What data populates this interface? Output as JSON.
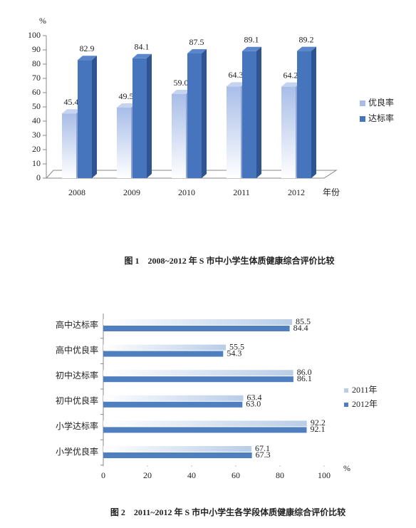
{
  "chart_data": [
    {
      "type": "bar3d",
      "title": "图 1　2008~2012 年 S 市中小学生体质健康综合评价比较",
      "y_label": "%",
      "x_label": "年份",
      "categories": [
        "2008",
        "2009",
        "2010",
        "2011",
        "2012"
      ],
      "series": [
        {
          "name": "优良率",
          "color": "#a8bde8",
          "values": [
            45.4,
            49.5,
            59.0,
            64.3,
            64.2
          ],
          "value_labels": [
            "45.4",
            "49.5",
            "59.0",
            "64.3",
            "64.2"
          ]
        },
        {
          "name": "达标率",
          "color": "#4674bd",
          "values": [
            82.9,
            84.1,
            87.5,
            89.1,
            89.2
          ]
        }
      ],
      "ylim": [
        0,
        100
      ],
      "yticks": [
        0,
        10,
        20,
        30,
        40,
        50,
        60,
        70,
        80,
        90,
        100
      ],
      "legend": "right"
    },
    {
      "type": "barh",
      "title": "图 2　2011~2012 年 S 市中小学生各学段体质健康综合评价比较",
      "x_label": "%",
      "categories": [
        "高中达标率",
        "高中优良率",
        "初中达标率",
        "初中优良率",
        "小学达标率",
        "小学优良率"
      ],
      "series": [
        {
          "name": "2011年",
          "color": "#b9cde8",
          "values": [
            85.5,
            55.5,
            86.0,
            63.4,
            92.2,
            67.1
          ],
          "value_labels": [
            "85.5",
            "55.5",
            "86.0",
            "63.4",
            "92.2",
            "67.1"
          ]
        },
        {
          "name": "2012年",
          "color": "#4f7fbf",
          "values": [
            84.4,
            54.3,
            86.1,
            63.0,
            92.1,
            67.3
          ],
          "value_labels": [
            "84.4",
            "54.3",
            "86.1",
            "63.0",
            "92.1",
            "67.3"
          ]
        }
      ],
      "xlim": [
        0,
        100
      ],
      "xticks": [
        0,
        20,
        40,
        60,
        80,
        100
      ],
      "legend": "right"
    }
  ]
}
